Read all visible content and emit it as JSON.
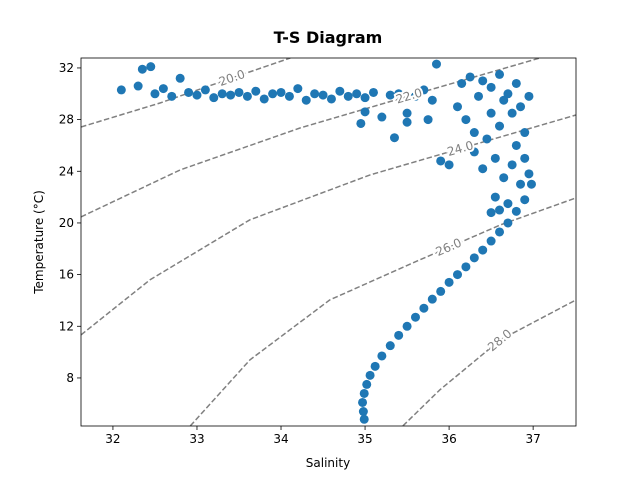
{
  "chart_data": {
    "type": "scatter",
    "title": "T-S Diagram",
    "x_label": "Salinity",
    "y_label": "Temperature (°C)",
    "color": "#1f77b4",
    "contour_color": "#808080",
    "xlim": [
      31.62,
      37.51
    ],
    "ylim": [
      4.28,
      32.77
    ],
    "xticks": [
      32,
      33,
      34,
      35,
      36,
      37
    ],
    "yticks": [
      8,
      12,
      16,
      20,
      24,
      28,
      32
    ],
    "x": [
      32.1,
      32.3,
      32.35,
      32.45,
      32.5,
      32.6,
      32.7,
      32.8,
      32.9,
      33.0,
      33.1,
      33.2,
      33.3,
      33.4,
      33.5,
      33.6,
      33.7,
      33.8,
      33.9,
      34.0,
      34.1,
      34.2,
      34.3,
      34.4,
      34.5,
      34.6,
      34.7,
      34.8,
      34.9,
      35.0,
      35.1,
      35.2,
      35.3,
      35.4,
      35.5,
      35.6,
      35.7,
      35.8,
      34.95,
      35.0,
      35.35,
      35.5,
      35.75,
      35.85,
      35.9,
      36.0,
      36.1,
      36.15,
      36.2,
      36.25,
      36.3,
      36.3,
      36.35,
      36.4,
      36.4,
      36.45,
      36.5,
      36.5,
      36.55,
      36.55,
      36.6,
      36.6,
      36.65,
      36.65,
      36.7,
      36.7,
      36.75,
      36.75,
      36.8,
      36.8,
      36.85,
      36.85,
      36.9,
      36.9,
      36.95,
      36.95,
      36.6,
      36.5,
      36.98,
      36.9,
      36.8,
      36.7,
      36.6,
      36.5,
      36.4,
      36.3,
      36.2,
      36.1,
      36.0,
      35.9,
      35.8,
      35.7,
      35.6,
      35.5,
      35.4,
      35.3,
      35.2,
      35.12,
      35.06,
      35.02,
      34.99,
      34.97,
      34.98,
      34.99
    ],
    "y": [
      30.3,
      30.6,
      31.9,
      32.1,
      30.0,
      30.4,
      29.8,
      31.2,
      30.1,
      29.9,
      30.3,
      29.7,
      30.0,
      29.9,
      30.1,
      29.8,
      30.2,
      29.6,
      30.0,
      30.1,
      29.8,
      30.4,
      29.5,
      30.0,
      29.9,
      29.6,
      30.2,
      29.8,
      30.0,
      29.7,
      30.1,
      28.2,
      29.9,
      30.0,
      28.5,
      29.8,
      30.3,
      29.5,
      27.7,
      28.6,
      26.6,
      27.8,
      28.0,
      32.3,
      24.8,
      24.5,
      29.0,
      30.8,
      28.0,
      31.3,
      27.0,
      25.5,
      29.8,
      24.2,
      31.0,
      26.5,
      28.5,
      30.5,
      22.0,
      25.0,
      31.5,
      27.5,
      29.5,
      23.5,
      30.0,
      21.5,
      24.5,
      28.5,
      26.0,
      30.8,
      23.0,
      29.0,
      25.0,
      27.0,
      23.8,
      29.8,
      21.0,
      20.8,
      23.0,
      21.8,
      20.9,
      20.0,
      19.3,
      18.6,
      17.9,
      17.3,
      16.6,
      16.0,
      15.4,
      14.7,
      14.1,
      13.4,
      12.7,
      12.0,
      11.3,
      10.5,
      9.7,
      8.9,
      8.2,
      7.5,
      6.8,
      6.1,
      5.4,
      4.8
    ],
    "contours": [
      {
        "level": {
          "value": 20,
          "label": "20.0"
        },
        "x": [
          31.62,
          32.56,
          33.45,
          34.11
        ],
        "y": [
          27.43,
          29.29,
          31.3,
          32.77
        ]
      },
      {
        "level": {
          "value": 22,
          "label": "22.0"
        },
        "x": [
          31.62,
          32.8,
          34.23,
          35.77,
          37.08
        ],
        "y": [
          20.47,
          24.11,
          27.36,
          30.3,
          32.77
        ]
      },
      {
        "level": {
          "value": 24,
          "label": "24.0"
        },
        "x": [
          31.62,
          32.44,
          33.63,
          35.06,
          36.49,
          37.51
        ],
        "y": [
          11.33,
          15.59,
          20.24,
          23.72,
          26.43,
          28.36
        ]
      },
      {
        "level": {
          "value": 26,
          "label": "26.0"
        },
        "x": [
          32.92,
          33.63,
          34.58,
          35.65,
          36.61,
          37.51
        ],
        "y": [
          4.29,
          9.4,
          14.04,
          17.14,
          19.85,
          21.94
        ]
      },
      {
        "level": {
          "value": 28,
          "label": "28.0"
        },
        "x": [
          35.45,
          35.89,
          36.61,
          37.51
        ],
        "y": [
          4.29,
          7.08,
          10.95,
          14.04
        ]
      }
    ]
  }
}
